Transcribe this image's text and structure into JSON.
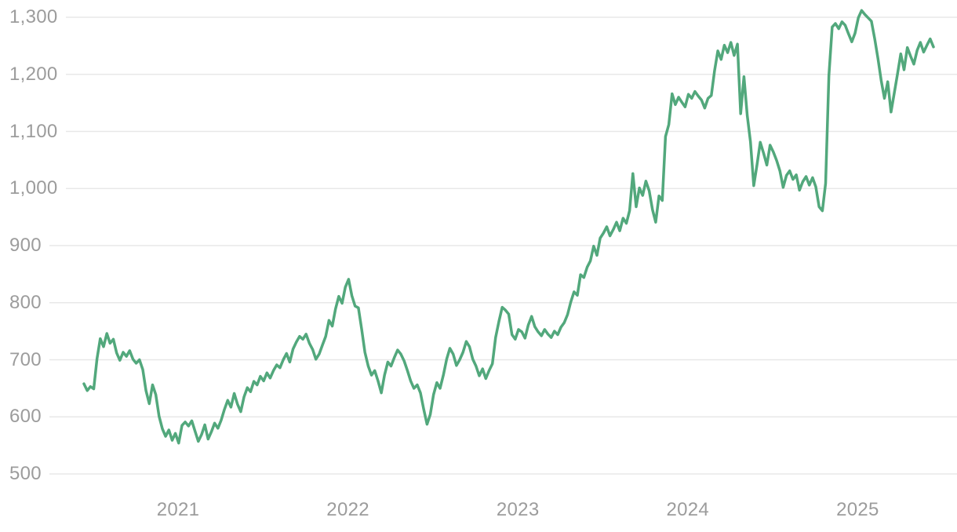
{
  "chart_data": {
    "type": "line",
    "title": "",
    "legend": [],
    "grid": "horizontal",
    "line_color": "#52a87c",
    "grid_color": "#e8e8e8",
    "label_color": "#9c9c9c",
    "background_color": "#ffffff",
    "xlim": [
      2020.446,
      2025.446
    ],
    "ylim": [
      500,
      1300
    ],
    "x_start": 2020.446,
    "x_step": 0.0192308,
    "x_ticks": [
      {
        "value": 2021,
        "label": "2021"
      },
      {
        "value": 2022,
        "label": "2022"
      },
      {
        "value": 2023,
        "label": "2023"
      },
      {
        "value": 2024,
        "label": "2024"
      },
      {
        "value": 2025,
        "label": "2025"
      }
    ],
    "y_ticks": [
      {
        "value": 500,
        "label": "500"
      },
      {
        "value": 600,
        "label": "600"
      },
      {
        "value": 700,
        "label": "700"
      },
      {
        "value": 800,
        "label": "800"
      },
      {
        "value": 900,
        "label": "900"
      },
      {
        "value": 1000,
        "label": "1,000"
      },
      {
        "value": 1100,
        "label": "1,100"
      },
      {
        "value": 1200,
        "label": "1,200"
      },
      {
        "value": 1300,
        "label": "1,300"
      }
    ],
    "values": [
      658,
      646,
      653,
      649,
      702,
      737,
      723,
      746,
      729,
      736,
      712,
      699,
      713,
      706,
      716,
      701,
      694,
      700,
      683,
      646,
      623,
      656,
      639,
      601,
      579,
      566,
      577,
      559,
      571,
      554,
      585,
      591,
      584,
      593,
      575,
      557,
      569,
      586,
      561,
      574,
      589,
      580,
      594,
      613,
      629,
      617,
      641,
      622,
      609,
      635,
      651,
      644,
      662,
      656,
      671,
      663,
      677,
      668,
      681,
      691,
      686,
      700,
      711,
      696,
      719,
      731,
      741,
      736,
      745,
      729,
      718,
      701,
      710,
      726,
      741,
      769,
      759,
      789,
      811,
      799,
      827,
      841,
      812,
      794,
      791,
      753,
      713,
      689,
      673,
      681,
      663,
      642,
      673,
      696,
      689,
      704,
      717,
      710,
      698,
      681,
      663,
      650,
      656,
      642,
      613,
      587,
      604,
      639,
      660,
      650,
      673,
      701,
      720,
      710,
      690,
      700,
      713,
      732,
      723,
      701,
      689,
      672,
      684,
      667,
      681,
      693,
      739,
      767,
      792,
      787,
      780,
      744,
      736,
      753,
      749,
      738,
      761,
      776,
      758,
      749,
      742,
      753,
      745,
      739,
      750,
      744,
      757,
      765,
      779,
      801,
      819,
      813,
      849,
      844,
      862,
      873,
      899,
      883,
      913,
      922,
      933,
      917,
      928,
      941,
      926,
      948,
      939,
      961,
      1026,
      968,
      1001,
      988,
      1013,
      996,
      963,
      941,
      987,
      979,
      1091,
      1112,
      1166,
      1147,
      1160,
      1151,
      1143,
      1165,
      1158,
      1170,
      1162,
      1155,
      1141,
      1158,
      1163,
      1206,
      1241,
      1226,
      1251,
      1238,
      1256,
      1233,
      1253,
      1131,
      1196,
      1128,
      1082,
      1005,
      1042,
      1081,
      1062,
      1041,
      1076,
      1064,
      1049,
      1031,
      1002,
      1023,
      1031,
      1016,
      1024,
      997,
      1012,
      1021,
      1006,
      1019,
      1003,
      968,
      961,
      1009,
      1198,
      1283,
      1289,
      1280,
      1292,
      1286,
      1271,
      1257,
      1272,
      1299,
      1312,
      1305,
      1299,
      1293,
      1263,
      1228,
      1189,
      1158,
      1187,
      1134,
      1167,
      1201,
      1236,
      1208,
      1247,
      1232,
      1218,
      1242,
      1256,
      1239,
      1251,
      1262,
      1248
    ]
  }
}
